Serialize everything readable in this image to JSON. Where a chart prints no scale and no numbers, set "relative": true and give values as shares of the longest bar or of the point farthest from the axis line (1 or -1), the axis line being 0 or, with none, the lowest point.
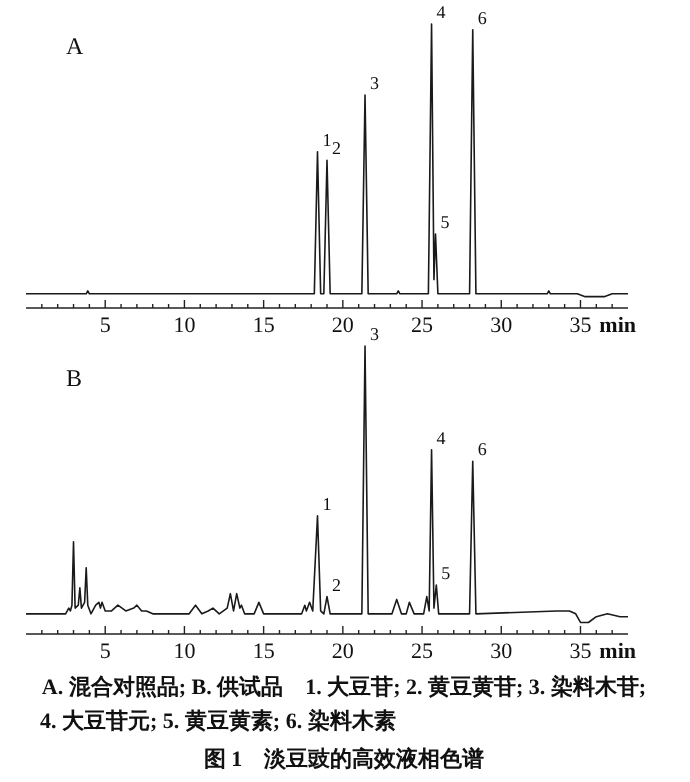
{
  "chart_data": [
    {
      "type": "line",
      "title": "A",
      "relative": true,
      "xlim": [
        0,
        38
      ],
      "xlabel": "min",
      "xticks": [
        {
          "value": 1,
          "label": null
        },
        {
          "value": 2,
          "label": null
        },
        {
          "value": 3,
          "label": null
        },
        {
          "value": 4,
          "label": null
        },
        5,
        {
          "value": 6,
          "label": null
        },
        {
          "value": 7,
          "label": null
        },
        {
          "value": 8,
          "label": null
        },
        {
          "value": 9,
          "label": null
        },
        10,
        {
          "value": 11,
          "label": null
        },
        {
          "value": 12,
          "label": null
        },
        {
          "value": 13,
          "label": null
        },
        {
          "value": 14,
          "label": null
        },
        15,
        {
          "value": 16,
          "label": null
        },
        {
          "value": 17,
          "label": null
        },
        {
          "value": 18,
          "label": null
        },
        {
          "value": 19,
          "label": null
        },
        20,
        {
          "value": 21,
          "label": null
        },
        {
          "value": 22,
          "label": null
        },
        {
          "value": 23,
          "label": null
        },
        {
          "value": 24,
          "label": null
        },
        25,
        {
          "value": 26,
          "label": null
        },
        {
          "value": 27,
          "label": null
        },
        {
          "value": 28,
          "label": null
        },
        {
          "value": 29,
          "label": null
        },
        30,
        {
          "value": 31,
          "label": null
        },
        {
          "value": 32,
          "label": null
        },
        {
          "value": 33,
          "label": null
        },
        {
          "value": 34,
          "label": null
        },
        35,
        {
          "value": 36,
          "label": null
        },
        {
          "value": 37,
          "label": null
        }
      ],
      "series": [
        {
          "color": "#1a1a1a",
          "x": [
            0,
            3.8,
            3.9,
            4.0,
            18.2,
            18.4,
            18.6,
            18.8,
            19.0,
            19.2,
            21.2,
            21.4,
            21.6,
            23.4,
            23.5,
            23.6,
            25.4,
            25.6,
            25.75,
            25.85,
            26.0,
            28.0,
            28.2,
            28.4,
            32.9,
            33.0,
            33.1,
            34.8,
            35.3,
            36.5,
            37,
            38
          ],
          "values": [
            0.05,
            0.05,
            0.06,
            0.05,
            0.05,
            0.55,
            0.05,
            0.05,
            0.52,
            0.05,
            0.05,
            0.75,
            0.05,
            0.05,
            0.06,
            0.05,
            0.05,
            1,
            0.1,
            0.26,
            0.05,
            0.05,
            0.98,
            0.05,
            0.05,
            0.06,
            0.05,
            0.05,
            0.04,
            0.04,
            0.05,
            0.05
          ]
        }
      ],
      "annotations": [
        {
          "text": "1",
          "x": 18.4,
          "y": 0.55
        },
        {
          "text": "2",
          "x": 19.0,
          "y": 0.52
        },
        {
          "text": "3",
          "x": 21.4,
          "y": 0.75
        },
        {
          "text": "4",
          "x": 25.6,
          "y": 1
        },
        {
          "text": "5",
          "x": 25.85,
          "y": 0.26
        },
        {
          "text": "6",
          "x": 28.2,
          "y": 0.98
        }
      ]
    },
    {
      "type": "line",
      "title": "B",
      "relative": true,
      "xlim": [
        0,
        38
      ],
      "xlabel": "min",
      "xticks": [
        {
          "value": 1,
          "label": null
        },
        {
          "value": 2,
          "label": null
        },
        {
          "value": 3,
          "label": null
        },
        {
          "value": 4,
          "label": null
        },
        5,
        {
          "value": 6,
          "label": null
        },
        {
          "value": 7,
          "label": null
        },
        {
          "value": 8,
          "label": null
        },
        {
          "value": 9,
          "label": null
        },
        10,
        {
          "value": 11,
          "label": null
        },
        {
          "value": 12,
          "label": null
        },
        {
          "value": 13,
          "label": null
        },
        {
          "value": 14,
          "label": null
        },
        15,
        {
          "value": 16,
          "label": null
        },
        {
          "value": 17,
          "label": null
        },
        {
          "value": 18,
          "label": null
        },
        {
          "value": 19,
          "label": null
        },
        20,
        {
          "value": 21,
          "label": null
        },
        {
          "value": 22,
          "label": null
        },
        {
          "value": 23,
          "label": null
        },
        {
          "value": 24,
          "label": null
        },
        25,
        {
          "value": 26,
          "label": null
        },
        {
          "value": 27,
          "label": null
        },
        {
          "value": 28,
          "label": null
        },
        {
          "value": 29,
          "label": null
        },
        30,
        {
          "value": 31,
          "label": null
        },
        {
          "value": 32,
          "label": null
        },
        {
          "value": 33,
          "label": null
        },
        {
          "value": 34,
          "label": null
        },
        35,
        {
          "value": 36,
          "label": null
        },
        {
          "value": 37,
          "label": null
        }
      ],
      "series": [
        {
          "color": "#1a1a1a",
          "x": [
            0,
            2.5,
            2.7,
            2.8,
            2.9,
            3.0,
            3.1,
            3.3,
            3.4,
            3.5,
            3.7,
            3.8,
            3.9,
            4.1,
            4.4,
            4.6,
            4.7,
            4.8,
            5.0,
            5.4,
            5.8,
            6.3,
            6.8,
            7.0,
            7.3,
            7.6,
            8.0,
            10.3,
            10.7,
            11.1,
            11.5,
            11.8,
            12.2,
            12.7,
            12.9,
            13.1,
            13.3,
            13.5,
            13.6,
            13.8,
            14.4,
            14.7,
            15.0,
            17.4,
            17.6,
            17.7,
            17.9,
            18.1,
            18.4,
            18.6,
            18.8,
            19.0,
            19.2,
            21.2,
            21.4,
            21.6,
            23.1,
            23.4,
            23.7,
            24.0,
            24.2,
            24.5,
            25.1,
            25.3,
            25.45,
            25.6,
            25.75,
            25.9,
            26.05,
            28.0,
            28.2,
            28.4,
            33.5,
            34.3,
            34.7,
            35.0,
            35.5,
            36.0,
            36.7,
            37.5,
            38
          ],
          "values": [
            0.07,
            0.07,
            0.09,
            0.08,
            0.1,
            0.32,
            0.09,
            0.1,
            0.16,
            0.09,
            0.11,
            0.23,
            0.1,
            0.07,
            0.1,
            0.11,
            0.09,
            0.11,
            0.08,
            0.08,
            0.1,
            0.08,
            0.09,
            0.1,
            0.08,
            0.08,
            0.07,
            0.07,
            0.1,
            0.07,
            0.08,
            0.09,
            0.07,
            0.09,
            0.14,
            0.08,
            0.14,
            0.09,
            0.1,
            0.07,
            0.07,
            0.11,
            0.07,
            0.07,
            0.1,
            0.08,
            0.11,
            0.08,
            0.41,
            0.08,
            0.07,
            0.13,
            0.07,
            0.07,
            1,
            0.07,
            0.07,
            0.12,
            0.07,
            0.07,
            0.11,
            0.07,
            0.07,
            0.13,
            0.08,
            0.64,
            0.09,
            0.17,
            0.07,
            0.07,
            0.6,
            0.07,
            0.08,
            0.08,
            0.07,
            0.04,
            0.04,
            0.06,
            0.07,
            0.06,
            0.06
          ]
        }
      ],
      "annotations": [
        {
          "text": "1",
          "x": 18.4,
          "y": 0.41
        },
        {
          "text": "2",
          "x": 19.0,
          "y": 0.13
        },
        {
          "text": "3",
          "x": 21.4,
          "y": 1
        },
        {
          "text": "4",
          "x": 25.6,
          "y": 0.64
        },
        {
          "text": "5",
          "x": 25.9,
          "y": 0.17
        },
        {
          "text": "6",
          "x": 28.2,
          "y": 0.6
        },
        "A. 混合对照品; B. 供试品　1. 大豆苷; 2. 黄豆黄苷; 3. 染料木苷;",
        "4. 大豆苷元; 5. 黄豆黄素; 6. 染料木素",
        "图 1　淡豆豉的高效液相色谱"
      ]
    }
  ]
}
